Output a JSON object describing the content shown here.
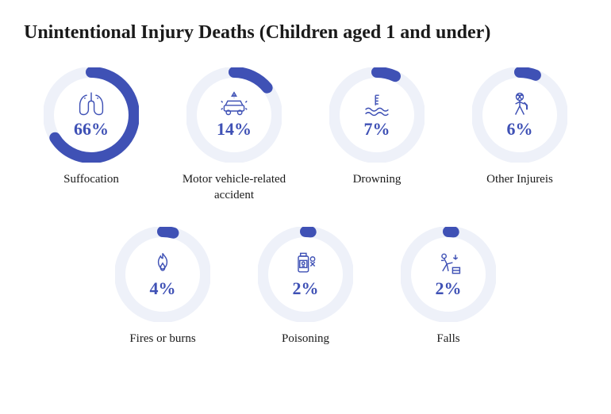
{
  "title": "Unintentional Injury Deaths (Children aged 1 and under)",
  "title_fontsize": 24,
  "title_color": "#1a1a1a",
  "background_color": "#ffffff",
  "ring_bg_color": "#eef1f9",
  "ring_fg_color": "#3f51b5",
  "icon_stroke_color": "#3f51b5",
  "pct_color": "#3f51b5",
  "pct_fontsize": 22,
  "label_fontsize": 15,
  "label_color": "#1a1a1a",
  "ring_outer_radius": 54,
  "ring_stroke_width": 14,
  "chart_size": 120,
  "items": [
    {
      "label": "Suffocation",
      "percent": 66,
      "icon": "lungs"
    },
    {
      "label": "Motor vehicle-related accident",
      "percent": 14,
      "icon": "car-crash"
    },
    {
      "label": "Drowning",
      "percent": 7,
      "icon": "drowning"
    },
    {
      "label": "Other Injureis",
      "percent": 6,
      "icon": "injury"
    },
    {
      "label": "Fires or burns",
      "percent": 4,
      "icon": "fire"
    },
    {
      "label": "Poisoning",
      "percent": 2,
      "icon": "poison"
    },
    {
      "label": "Falls",
      "percent": 2,
      "icon": "fall"
    }
  ]
}
